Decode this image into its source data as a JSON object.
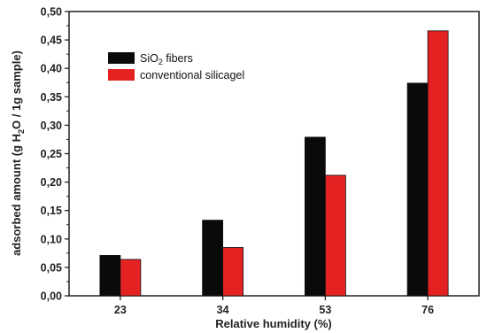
{
  "chart_data": {
    "type": "bar",
    "categories": [
      "23",
      "34",
      "53",
      "76"
    ],
    "series": [
      {
        "name": "SiO2 fibers",
        "name_main": "SiO",
        "name_sub": "2",
        "name_rest": " fibers",
        "color": "#0a0a0a",
        "values": [
          0.071,
          0.133,
          0.279,
          0.374
        ]
      },
      {
        "name": "conventional silicagel",
        "color": "#e52222",
        "values": [
          0.064,
          0.085,
          0.212,
          0.466
        ]
      }
    ],
    "xlabel": "Relative humidity (%)",
    "ylabel": "adsorbed amount (g H2O / 1g sample)",
    "ylabel_parts": {
      "pre": "adsorbed amount (g H",
      "sub": "2",
      "post": "O / 1g sample)"
    },
    "ylim": [
      0,
      0.5
    ],
    "yticks": [
      "0,00",
      "0,05",
      "0,10",
      "0,15",
      "0,20",
      "0,25",
      "0,30",
      "0,35",
      "0,40",
      "0,45",
      "0,50"
    ],
    "legend_position": "top-left",
    "grid": false
  }
}
